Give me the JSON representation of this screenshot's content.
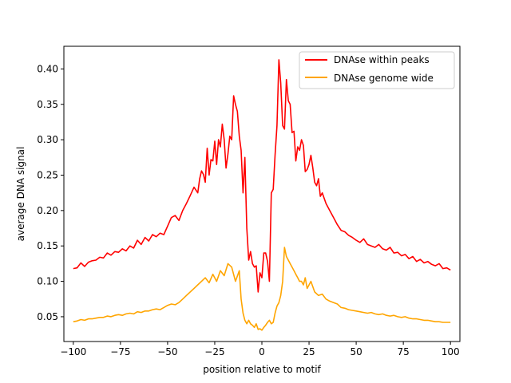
{
  "chart_data": {
    "type": "line",
    "title": "",
    "xlabel": "position relative to motif",
    "ylabel": "average DNA signal",
    "xlim": [
      -105,
      105
    ],
    "ylim": [
      0.015,
      0.432
    ],
    "xticks": [
      -100,
      -75,
      -50,
      -25,
      0,
      25,
      50,
      75,
      100
    ],
    "xtick_labels": [
      "−100",
      "−75",
      "−50",
      "−25",
      "0",
      "25",
      "50",
      "75",
      "100"
    ],
    "yticks": [
      0.05,
      0.1,
      0.15,
      0.2,
      0.25,
      0.3,
      0.35,
      0.4
    ],
    "ytick_labels": [
      "0.05",
      "0.10",
      "0.15",
      "0.20",
      "0.25",
      "0.30",
      "0.35",
      "0.40"
    ],
    "legend_position": "top-right",
    "grid": false,
    "series": [
      {
        "name": "DNAse within peaks",
        "color": "#ff0000",
        "x": [
          -100,
          -98,
          -96,
          -94,
          -92,
          -90,
          -88,
          -86,
          -84,
          -82,
          -80,
          -78,
          -76,
          -74,
          -72,
          -70,
          -68,
          -66,
          -64,
          -62,
          -60,
          -58,
          -56,
          -54,
          -52,
          -50,
          -48,
          -46,
          -44,
          -42,
          -40,
          -38,
          -36,
          -34,
          -33,
          -32,
          -31,
          -30,
          -29,
          -28,
          -27,
          -26,
          -25,
          -24,
          -23,
          -22,
          -21,
          -20,
          -19,
          -18,
          -17,
          -16,
          -15,
          -14,
          -13,
          -12,
          -11,
          -10,
          -9,
          -8,
          -7,
          -6,
          -5,
          -4,
          -3,
          -2,
          -1,
          0,
          1,
          2,
          3,
          4,
          5,
          6,
          7,
          8,
          9,
          10,
          11,
          12,
          13,
          14,
          15,
          16,
          17,
          18,
          19,
          20,
          21,
          22,
          23,
          24,
          25,
          26,
          27,
          28,
          29,
          30,
          31,
          32,
          34,
          36,
          38,
          40,
          42,
          44,
          46,
          48,
          50,
          52,
          54,
          56,
          58,
          60,
          62,
          64,
          66,
          68,
          70,
          72,
          74,
          76,
          78,
          80,
          82,
          84,
          86,
          88,
          90,
          92,
          94,
          96,
          98,
          100
        ],
        "values": [
          0.118,
          0.119,
          0.126,
          0.121,
          0.127,
          0.129,
          0.13,
          0.134,
          0.133,
          0.14,
          0.137,
          0.142,
          0.141,
          0.146,
          0.143,
          0.15,
          0.147,
          0.158,
          0.152,
          0.162,
          0.157,
          0.166,
          0.163,
          0.168,
          0.166,
          0.178,
          0.19,
          0.193,
          0.186,
          0.2,
          0.21,
          0.221,
          0.233,
          0.225,
          0.245,
          0.256,
          0.251,
          0.24,
          0.288,
          0.25,
          0.272,
          0.27,
          0.298,
          0.265,
          0.3,
          0.29,
          0.322,
          0.3,
          0.26,
          0.28,
          0.305,
          0.3,
          0.362,
          0.35,
          0.34,
          0.305,
          0.285,
          0.225,
          0.275,
          0.175,
          0.13,
          0.142,
          0.125,
          0.12,
          0.122,
          0.085,
          0.112,
          0.105,
          0.14,
          0.14,
          0.128,
          0.1,
          0.225,
          0.23,
          0.278,
          0.32,
          0.413,
          0.38,
          0.32,
          0.315,
          0.385,
          0.355,
          0.35,
          0.31,
          0.312,
          0.27,
          0.29,
          0.285,
          0.3,
          0.292,
          0.255,
          0.258,
          0.265,
          0.278,
          0.26,
          0.24,
          0.235,
          0.245,
          0.22,
          0.225,
          0.21,
          0.2,
          0.19,
          0.18,
          0.172,
          0.17,
          0.165,
          0.162,
          0.158,
          0.155,
          0.16,
          0.152,
          0.15,
          0.148,
          0.152,
          0.146,
          0.144,
          0.148,
          0.14,
          0.141,
          0.136,
          0.138,
          0.132,
          0.135,
          0.128,
          0.131,
          0.126,
          0.128,
          0.124,
          0.122,
          0.125,
          0.118,
          0.119,
          0.116
        ]
      },
      {
        "name": "DNAse genome wide",
        "color": "#ffa500",
        "x": [
          -100,
          -98,
          -96,
          -94,
          -92,
          -90,
          -88,
          -86,
          -84,
          -82,
          -80,
          -78,
          -76,
          -74,
          -72,
          -70,
          -68,
          -66,
          -64,
          -62,
          -60,
          -58,
          -56,
          -54,
          -52,
          -50,
          -48,
          -46,
          -44,
          -42,
          -40,
          -38,
          -36,
          -34,
          -32,
          -30,
          -28,
          -26,
          -24,
          -22,
          -20,
          -18,
          -16,
          -14,
          -12,
          -11,
          -10,
          -9,
          -8,
          -7,
          -6,
          -5,
          -4,
          -3,
          -2,
          -1,
          0,
          1,
          2,
          3,
          4,
          5,
          6,
          7,
          8,
          9,
          10,
          11,
          12,
          13,
          14,
          15,
          16,
          17,
          18,
          19,
          20,
          21,
          22,
          23,
          24,
          26,
          28,
          30,
          32,
          34,
          36,
          38,
          40,
          42,
          44,
          46,
          48,
          50,
          52,
          54,
          56,
          58,
          60,
          62,
          64,
          66,
          68,
          70,
          72,
          74,
          76,
          78,
          80,
          82,
          84,
          86,
          88,
          90,
          92,
          94,
          96,
          98,
          100
        ],
        "values": [
          0.043,
          0.044,
          0.046,
          0.045,
          0.047,
          0.047,
          0.048,
          0.049,
          0.049,
          0.051,
          0.05,
          0.052,
          0.053,
          0.052,
          0.054,
          0.055,
          0.054,
          0.057,
          0.056,
          0.058,
          0.058,
          0.06,
          0.061,
          0.06,
          0.063,
          0.066,
          0.068,
          0.067,
          0.07,
          0.075,
          0.08,
          0.085,
          0.09,
          0.095,
          0.1,
          0.105,
          0.098,
          0.11,
          0.1,
          0.115,
          0.108,
          0.125,
          0.12,
          0.1,
          0.115,
          0.075,
          0.055,
          0.045,
          0.04,
          0.045,
          0.04,
          0.038,
          0.035,
          0.04,
          0.032,
          0.033,
          0.031,
          0.035,
          0.038,
          0.042,
          0.045,
          0.04,
          0.042,
          0.055,
          0.065,
          0.07,
          0.08,
          0.1,
          0.148,
          0.135,
          0.13,
          0.125,
          0.12,
          0.115,
          0.11,
          0.105,
          0.1,
          0.1,
          0.095,
          0.105,
          0.09,
          0.1,
          0.085,
          0.08,
          0.082,
          0.075,
          0.072,
          0.07,
          0.068,
          0.063,
          0.062,
          0.06,
          0.059,
          0.058,
          0.057,
          0.056,
          0.055,
          0.056,
          0.054,
          0.053,
          0.054,
          0.052,
          0.051,
          0.052,
          0.05,
          0.049,
          0.05,
          0.048,
          0.047,
          0.047,
          0.046,
          0.045,
          0.045,
          0.044,
          0.043,
          0.043,
          0.042,
          0.042,
          0.042
        ]
      }
    ]
  }
}
